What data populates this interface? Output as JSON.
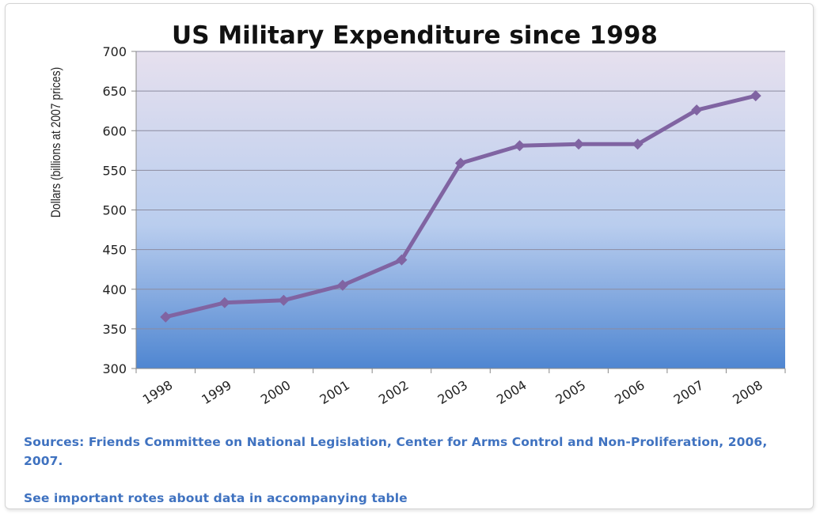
{
  "chart_data": {
    "type": "line",
    "title": "US Military Expenditure since 1998",
    "xlabel": "",
    "ylabel": "Dollars (billions at 2007 prices)",
    "categories": [
      "1998",
      "1999",
      "2000",
      "2001",
      "2002",
      "2003",
      "2004",
      "2005",
      "2006",
      "2007",
      "2008"
    ],
    "series": [
      {
        "values": [
          365,
          383,
          386,
          405,
          437,
          559,
          581,
          583,
          583,
          626,
          644
        ]
      }
    ],
    "ylim": [
      300,
      700
    ],
    "yticks": [
      300,
      350,
      400,
      450,
      500,
      550,
      600,
      650,
      700
    ],
    "grid": true,
    "legend": "none",
    "colors": {
      "line": "#8064a2",
      "bg_top": "#e6e0ee",
      "bg_bottom": "#4f86d1",
      "gridline": "#8c8ca0",
      "note_text": "#3f72c0"
    }
  },
  "notes": {
    "sources": "Sources: Friends Committee on National Legislation, Center for Arms Control and Non-Proliferation, 2006, 2007.",
    "see_notes": "See important rotes about data in accompanying table"
  }
}
